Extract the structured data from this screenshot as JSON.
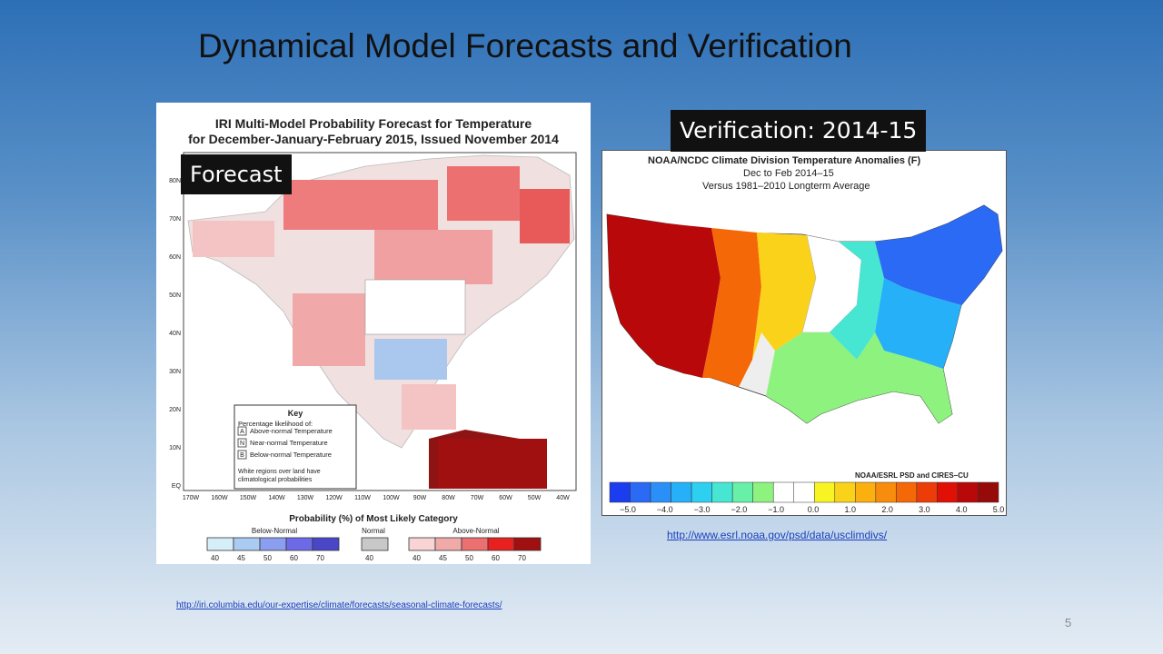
{
  "slide": {
    "title": "Dynamical Model Forecasts and Verification",
    "page_number": "5"
  },
  "forecast": {
    "label": "Forecast",
    "title_line1": "IRI Multi-Model Probability Forecast for Temperature",
    "title_line2": "for December-January-February 2015, Issued November 2014",
    "lat_labels": [
      "80N",
      "70N",
      "60N",
      "50N",
      "40N",
      "30N",
      "20N",
      "10N",
      "EQ"
    ],
    "lon_labels": [
      "170W",
      "160W",
      "150W",
      "140W",
      "130W",
      "120W",
      "110W",
      "100W",
      "90W",
      "80W",
      "70W",
      "60W",
      "50W",
      "40W"
    ],
    "key": {
      "title": "Key",
      "subtitle": "Percentage likelihood of:",
      "rows": [
        {
          "letter": "A",
          "text": "Above-normal Temperature"
        },
        {
          "letter": "N",
          "text": "Near-normal Temperature"
        },
        {
          "letter": "B",
          "text": "Below-normal Temperature"
        }
      ],
      "note_line1": "White regions over land have",
      "note_line2": "climatological probabilities"
    },
    "legend": {
      "title": "Probability (%) of Most Likely Category",
      "below_label": "Below-Normal",
      "normal_label": "Normal",
      "above_label": "Above-Normal",
      "below_ticks": [
        "40",
        "45",
        "50",
        "60",
        "70"
      ],
      "normal_ticks": [
        "40"
      ],
      "above_ticks": [
        "40",
        "45",
        "50",
        "60",
        "70"
      ],
      "below_colors": [
        "#d6eef8",
        "#aaccf2",
        "#8c9ef0",
        "#6d6ae8",
        "#4a46c8"
      ],
      "normal_color": "#c8c8c8",
      "above_colors": [
        "#f8d4d4",
        "#f0aaaa",
        "#ec7070",
        "#e82020",
        "#a01010"
      ]
    },
    "link": "http://iri.columbia.edu/our-expertise/climate/forecasts/seasonal-climate-forecasts/"
  },
  "verification": {
    "label": "Verification: 2014-15",
    "title_line1": "NOAA/NCDC Climate Division Temperature Anomalies (F)",
    "title_line2": "Dec to Feb 2014–15",
    "title_line3": "Versus 1981–2010 Longterm Average",
    "credit": "NOAA/ESRL PSD and CIRES–CU",
    "scale_labels": [
      "−5.0",
      "−4.0",
      "−3.0",
      "−2.0",
      "−1.0",
      "0.0",
      "1.0",
      "2.0",
      "3.0",
      "4.0",
      "5.0"
    ],
    "scale_colors": [
      "#1c3cf0",
      "#2a6af5",
      "#2b8ff8",
      "#26b0f8",
      "#2ed0f2",
      "#46e6d2",
      "#68f0a8",
      "#8ef27e",
      "#ffffff",
      "#ffffff",
      "#f8f424",
      "#fbd21a",
      "#fbb010",
      "#f88c0c",
      "#f46808",
      "#ec3c08",
      "#e01006",
      "#b8080a",
      "#960a0a"
    ],
    "link": "http://www.esrl.noaa.gov/psd/data/usclimdivs/"
  }
}
